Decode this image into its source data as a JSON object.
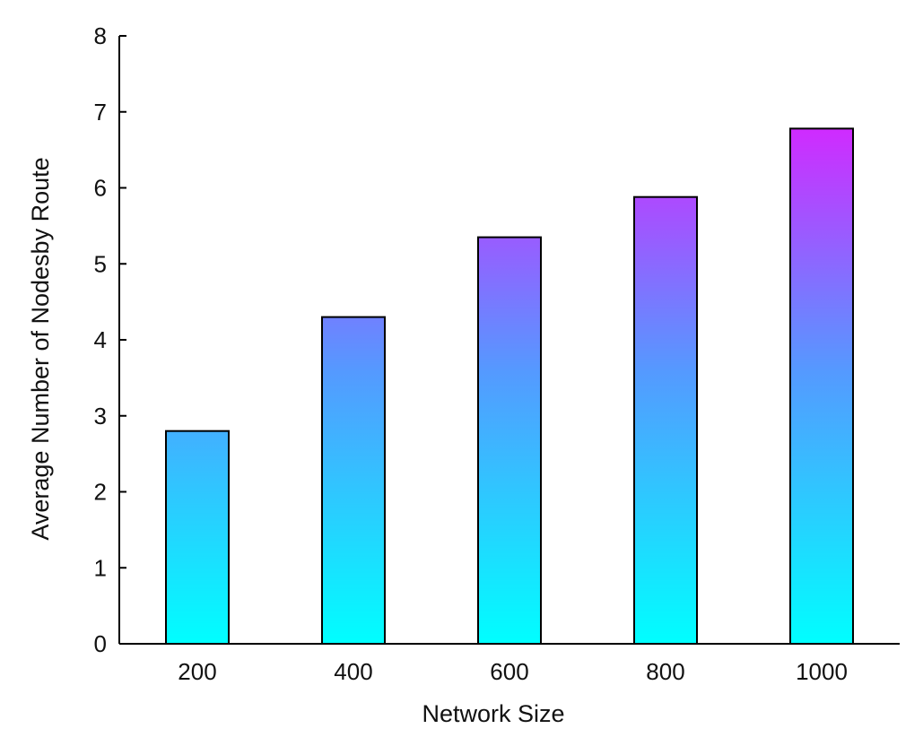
{
  "chart_data": {
    "type": "bar",
    "title": "",
    "xlabel": "Network Size",
    "ylabel": "Average Number of Nodesby Route",
    "categories": [
      "200",
      "400",
      "600",
      "800",
      "1000"
    ],
    "values": [
      2.8,
      4.3,
      5.35,
      5.88,
      6.78
    ],
    "ylim": [
      0,
      8
    ],
    "yticks": [
      "0",
      "1",
      "2",
      "3",
      "4",
      "5",
      "6",
      "7",
      "8"
    ],
    "grid": false,
    "legend": "none",
    "colors": {
      "bar_bottom": "#00ffff",
      "bar_middle": "#5599ff",
      "bar_top": "#ff00ff",
      "outline": "#000000"
    }
  }
}
